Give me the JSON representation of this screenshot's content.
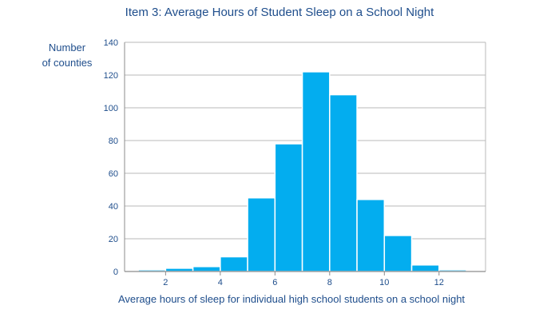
{
  "chart_data": {
    "type": "bar",
    "title": "Item 3: Average Hours of Student Sleep on a School Night",
    "xlabel": "Average hours of sleep for individual high school students on a school night",
    "ylabel_lines": [
      "Number",
      "of counties"
    ],
    "bins": [
      {
        "start": 1,
        "end": 2,
        "value": 1
      },
      {
        "start": 2,
        "end": 3,
        "value": 2
      },
      {
        "start": 3,
        "end": 4,
        "value": 3
      },
      {
        "start": 4,
        "end": 5,
        "value": 9
      },
      {
        "start": 5,
        "end": 6,
        "value": 45
      },
      {
        "start": 6,
        "end": 7,
        "value": 78
      },
      {
        "start": 7,
        "end": 8,
        "value": 122
      },
      {
        "start": 8,
        "end": 9,
        "value": 108
      },
      {
        "start": 9,
        "end": 10,
        "value": 44
      },
      {
        "start": 10,
        "end": 11,
        "value": 22
      },
      {
        "start": 11,
        "end": 12,
        "value": 4
      },
      {
        "start": 12,
        "end": 13,
        "value": 1
      }
    ],
    "xlim": [
      0.5,
      13.7
    ],
    "xticks": [
      2,
      4,
      6,
      8,
      10,
      12
    ],
    "ylim": [
      0,
      140
    ],
    "yticks": [
      0,
      20,
      40,
      60,
      80,
      100,
      120,
      140
    ],
    "grid": true,
    "colors": {
      "bar": "#03adef",
      "bar_edge": "#ffffff",
      "text": "#1f4e8c",
      "grid": "#b9b9b9",
      "axis": "#8c8c8c"
    }
  }
}
